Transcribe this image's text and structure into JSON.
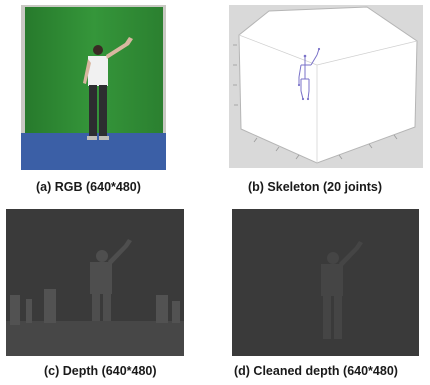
{
  "figure": {
    "panels": [
      {
        "id": "a",
        "caption": "(a)   RGB (640*480)",
        "kind": "photo"
      },
      {
        "id": "b",
        "caption": "(b)   Skeleton (20 joints)",
        "kind": "3d-plot"
      },
      {
        "id": "c",
        "caption": "(c)   Depth (640*480)",
        "kind": "depth-map"
      },
      {
        "id": "d",
        "caption": "(d)   Cleaned depth (640*480)",
        "kind": "depth-map"
      }
    ],
    "colors": {
      "green_screen": "#2f8a34",
      "floor": "#3b5fa6",
      "depth_background": "#3a3a3a",
      "depth_person": "#4e4e4e",
      "plot_background": "#d9d9d9",
      "skeleton": "#7a72c8"
    }
  }
}
